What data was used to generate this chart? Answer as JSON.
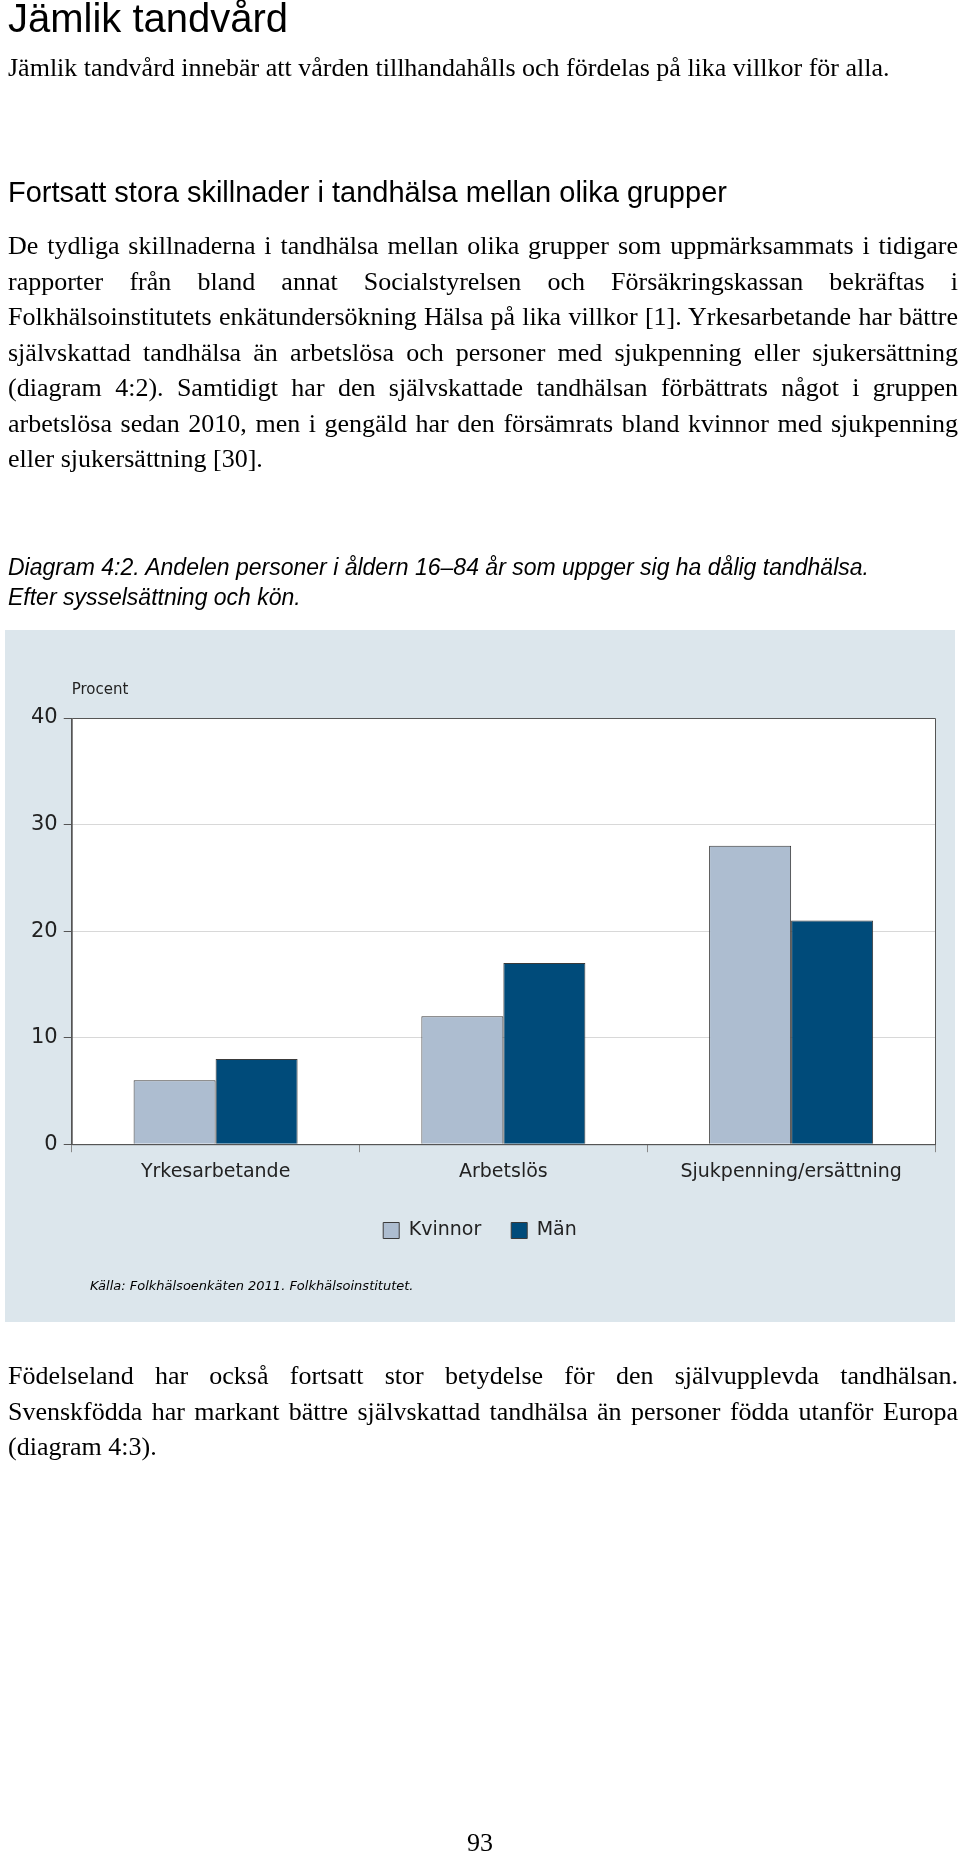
{
  "chart_data": {
    "type": "bar",
    "title": "Diagram 4:2. Andelen personer i åldern 16–84 år som uppger sig ha dålig tandhälsa. Efter sysselsättning och kön.",
    "ylabel": "Procent",
    "categories": [
      "Yrkesarbetande",
      "Arbetslös",
      "Sjukpenning/ersättning"
    ],
    "series": [
      {
        "name": "Kvinnor",
        "color": "#adbdd0",
        "values": [
          6,
          12,
          28
        ]
      },
      {
        "name": "Män",
        "color": "#004b7a",
        "values": [
          8,
          17,
          21
        ]
      }
    ],
    "ylim": [
      0,
      40
    ],
    "yticks": [
      0,
      10,
      20,
      30,
      40
    ],
    "grid": "y",
    "legend": "bottom",
    "annotations": [
      "Jämlik tandvård",
      "Jämlik tandvård innebär att vården tillhandahålls och fördelas på lika villkor för alla.",
      "Fortsatt stora skillnader i tandhälsa mellan olika grupper",
      "De tydliga skillnaderna i tandhälsa mellan olika grupper som uppmärksammats i tidigare rapporter från bland annat Socialstyrelsen och Försäkringskassan bekräftas i Folkhälsoinstitutets enkätundersökning Hälsa på lika villkor [1]. Yrkesarbetande har bättre självskattad tandhälsa än arbetslösa och personer med sjukpenning eller sjukersättning (diagram 4:2). Samtidigt har den självskattade tandhälsan förbättrats något i gruppen arbetslösa sedan 2010, men i gengäld har den försämrats bland kvinnor med sjukpenning eller sjukersättning [30].",
      "Källa: Folkhälsoenkäten 2011. Folkhälsoinstitutet.",
      "Födelseland har också fortsatt stor betydelse för den självupplevda tandhälsan. Svenskfödda har markant bättre självskattad tandhälsa än personer födda utanför Europa (diagram 4:3).",
      "93"
    ]
  }
}
